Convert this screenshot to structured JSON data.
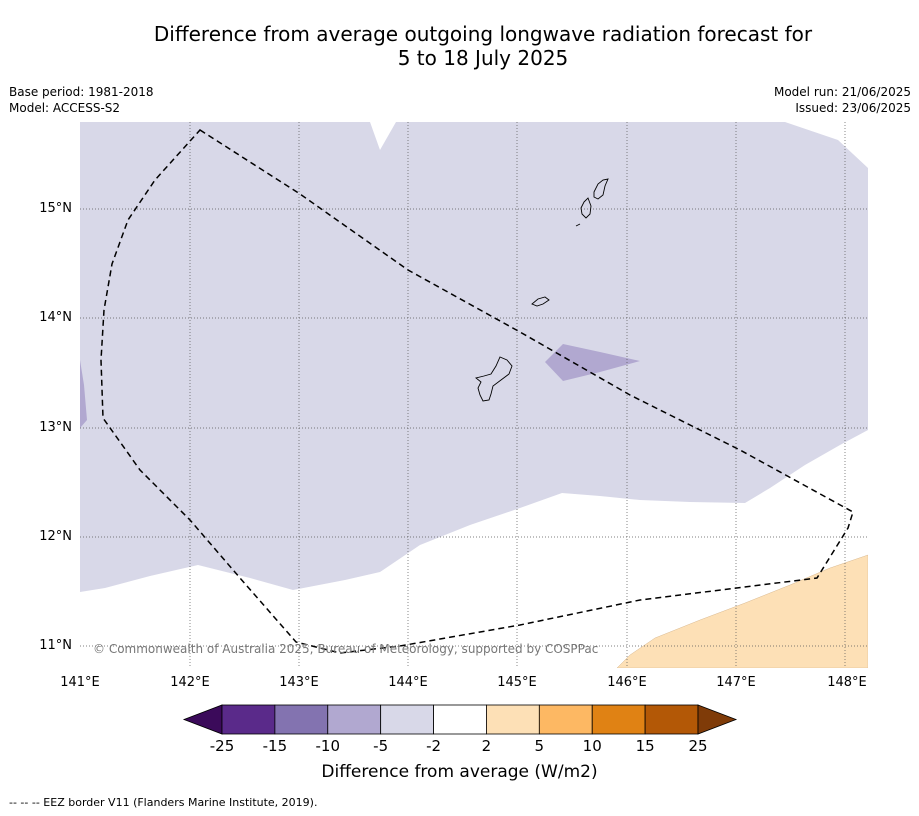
{
  "title": {
    "line1": "Difference from average outgoing longwave radiation forecast for",
    "line2": "5 to 18 July 2025"
  },
  "meta": {
    "base_period": "Base period: 1981-2018",
    "model": "Model: ACCESS-S2",
    "model_run": "Model run: 21/06/2025",
    "issued": "Issued: 23/06/2025"
  },
  "map": {
    "lat_labels": [
      "15°N",
      "14°N",
      "13°N",
      "12°N",
      "11°N"
    ],
    "lon_labels": [
      "141°E",
      "142°E",
      "143°E",
      "144°E",
      "145°E",
      "146°E",
      "147°E",
      "148°E"
    ],
    "copyright": "© Commonwealth of Australia 2025, Bureau of Meteorology, supported by COSPPac",
    "colors": {
      "light_negative": "#d8d8e8",
      "mid_negative": "#b1a8d0",
      "light_positive": "#fde0b6",
      "land_outline": "#000000",
      "eez_border": "#000000"
    }
  },
  "colorbar": {
    "ticks": [
      "-25",
      "-15",
      "-10",
      "-5",
      "-2",
      "2",
      "5",
      "10",
      "15",
      "25"
    ],
    "colors": [
      "#3b0a5a",
      "#5a2a8a",
      "#8373b0",
      "#b1a8d0",
      "#d8d8e8",
      "#ffffff",
      "#fde0b6",
      "#fdb863",
      "#e08214",
      "#b35806",
      "#7f3b08"
    ],
    "label": "Difference from average (W/m2)"
  },
  "footnote": "-- -- -- EEZ border V11 (Flanders Marine Institute, 2019)."
}
